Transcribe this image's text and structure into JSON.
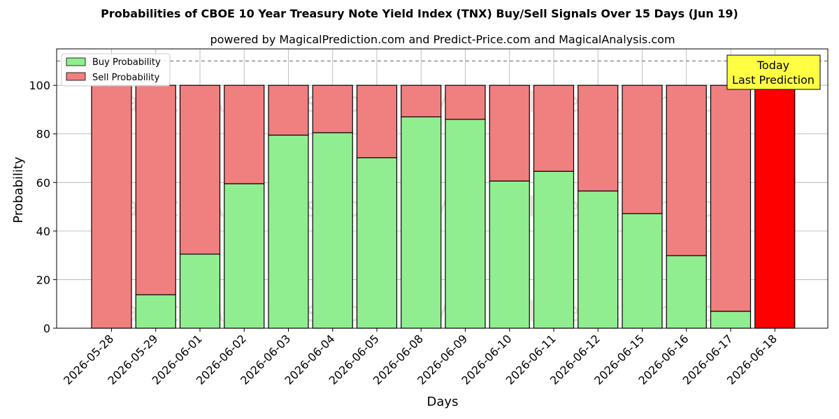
{
  "chart_data": {
    "type": "bar",
    "stacked": true,
    "title": "Probabilities of CBOE 10 Year Treasury Note Yield Index (TNX) Buy/Sell Signals Over 15 Days (Jun 19)",
    "subtitle": "powered by MagicalPrediction.com and Predict-Price.com and MagicalAnalysis.com",
    "xlabel": "Days",
    "ylabel": "Probability",
    "ylim": [
      0,
      115
    ],
    "yticks": [
      0,
      20,
      40,
      60,
      80,
      100
    ],
    "grid": true,
    "legend_position": "top-left",
    "reference_line": 110,
    "categories": [
      "2026-05-28",
      "2026-05-29",
      "2026-06-01",
      "2026-06-02",
      "2026-06-03",
      "2026-06-04",
      "2026-06-05",
      "2026-06-08",
      "2026-06-09",
      "2026-06-10",
      "2026-06-11",
      "2026-06-12",
      "2026-06-15",
      "2026-06-16",
      "2026-06-17",
      "2026-06-18"
    ],
    "series": [
      {
        "name": "Buy Probability",
        "color": "#90ee90",
        "values": [
          0,
          13.8,
          30.5,
          59.5,
          79.5,
          80.5,
          70.2,
          87.0,
          86.0,
          60.6,
          64.6,
          56.5,
          47.2,
          29.9,
          7.0,
          0
        ]
      },
      {
        "name": "Sell Probability",
        "color": "#f08080",
        "values": [
          100,
          86.2,
          69.5,
          40.5,
          20.5,
          19.5,
          29.8,
          13.0,
          14.0,
          39.4,
          35.4,
          43.5,
          52.8,
          70.1,
          93.0,
          100
        ]
      }
    ],
    "highlight": {
      "index": 15,
      "color": "#ff0000"
    },
    "annotation": {
      "lines": [
        "Today",
        "Last Prediction"
      ],
      "background": "#ffff44"
    },
    "watermarks": [
      "MagicalAnalysis.com",
      "MagicalPrediction.com"
    ]
  }
}
